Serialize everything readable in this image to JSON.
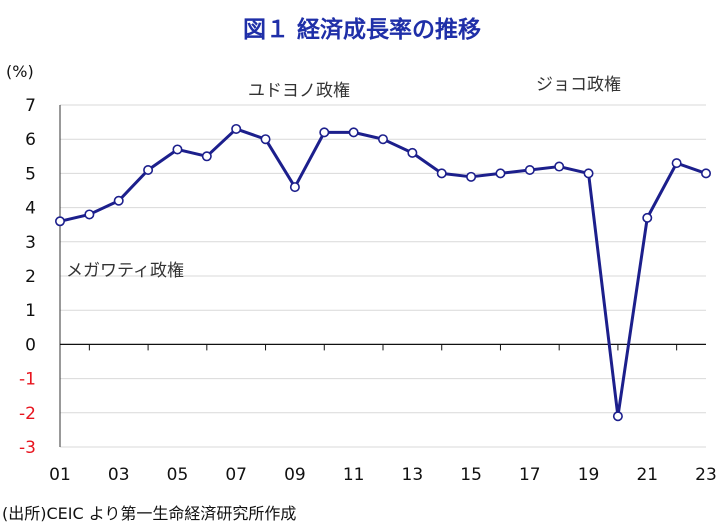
{
  "chart_data": {
    "type": "line",
    "title": "図１ 経済成長率の推移",
    "ylabel": "(%)",
    "ylim": [
      -3,
      7
    ],
    "yticks": [
      "7",
      "6",
      "5",
      "4",
      "3",
      "2",
      "1",
      "0",
      "-1",
      "-2",
      "-3"
    ],
    "xtick_labels": [
      "01",
      "03",
      "05",
      "07",
      "09",
      "11",
      "13",
      "15",
      "17",
      "19",
      "21",
      "23"
    ],
    "x": [
      2001,
      2002,
      2003,
      2004,
      2005,
      2006,
      2007,
      2008,
      2009,
      2010,
      2011,
      2012,
      2013,
      2014,
      2015,
      2016,
      2017,
      2018,
      2019,
      2020,
      2021,
      2022,
      2023
    ],
    "series": [
      {
        "values": [
          3.6,
          3.8,
          4.2,
          5.1,
          5.7,
          5.5,
          6.3,
          6.0,
          4.6,
          6.2,
          6.2,
          6.0,
          5.6,
          5.0,
          4.9,
          5.0,
          5.1,
          5.2,
          5.0,
          -2.1,
          3.7,
          5.3,
          5.0
        ]
      }
    ],
    "annotations": [
      "ユドヨノ政権",
      "ジョコ政権",
      "メガワティ政権"
    ],
    "grid": true,
    "colors": {
      "line": "#1c1f8c",
      "marker_fill": "#ffffff",
      "negative_tick": "#e8141e",
      "grid": "#d9d9d9"
    }
  },
  "source": "(出所)CEIC より第一生命経済研究所作成"
}
